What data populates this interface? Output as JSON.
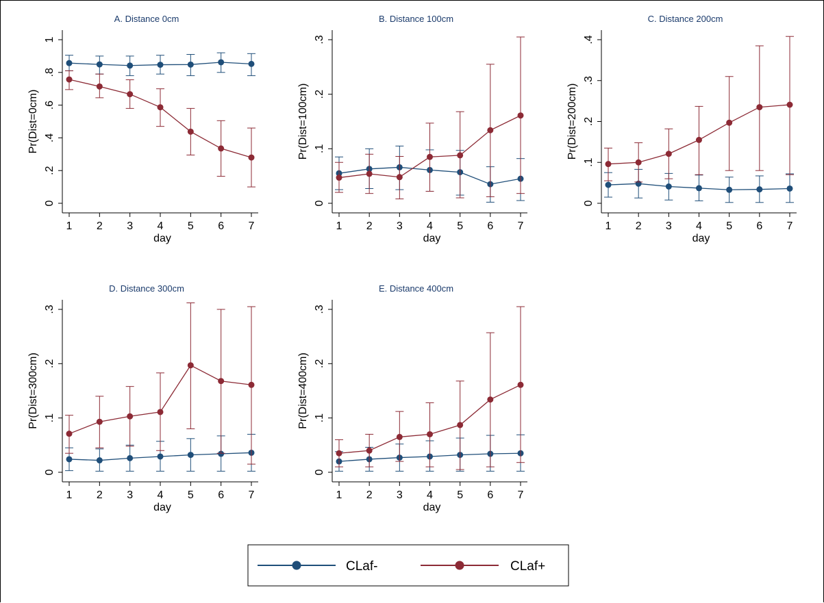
{
  "colors": {
    "claf_minus": "#1f4e79",
    "claf_plus": "#8c2a35",
    "title": "#1a3a6b"
  },
  "legend": {
    "items": [
      "CLaf-",
      "CLaf+"
    ],
    "placement": "bottom-center"
  },
  "chart_data": [
    {
      "type": "line",
      "title": "A. Distance 0cm",
      "xlabel": "day",
      "ylabel": "Pr(Dist=0cm)",
      "ylim": [
        0,
        1
      ],
      "yticks": [
        0,
        0.2,
        0.4,
        0.6,
        0.8,
        1
      ],
      "ytick_labels": [
        "0",
        ".2",
        ".4",
        ".6",
        ".8",
        "1"
      ],
      "x": [
        1,
        2,
        3,
        4,
        5,
        6,
        7
      ],
      "series": [
        {
          "name": "CLaf-",
          "values": [
            0.857,
            0.849,
            0.842,
            0.847,
            0.848,
            0.862,
            0.852
          ],
          "lower": [
            0.81,
            0.79,
            0.78,
            0.79,
            0.78,
            0.8,
            0.78
          ],
          "upper": [
            0.905,
            0.9,
            0.9,
            0.905,
            0.91,
            0.92,
            0.915
          ]
        },
        {
          "name": "CLaf+",
          "values": [
            0.757,
            0.714,
            0.667,
            0.587,
            0.438,
            0.335,
            0.28
          ],
          "lower": [
            0.695,
            0.645,
            0.58,
            0.47,
            0.295,
            0.165,
            0.1
          ],
          "upper": [
            0.81,
            0.79,
            0.755,
            0.7,
            0.58,
            0.505,
            0.46
          ]
        }
      ]
    },
    {
      "type": "line",
      "title": "B. Distance 100cm",
      "xlabel": "day",
      "ylabel": "Pr(Dist=100cm)",
      "ylim": [
        0,
        0.3
      ],
      "yticks": [
        0,
        0.1,
        0.2,
        0.3
      ],
      "ytick_labels": [
        "0",
        ".1",
        ".2",
        ".3"
      ],
      "x": [
        1,
        2,
        3,
        4,
        5,
        6,
        7
      ],
      "series": [
        {
          "name": "CLaf-",
          "values": [
            0.055,
            0.063,
            0.066,
            0.061,
            0.057,
            0.035,
            0.045
          ],
          "lower": [
            0.025,
            0.027,
            0.025,
            0.022,
            0.015,
            0.002,
            0.005
          ],
          "upper": [
            0.085,
            0.1,
            0.105,
            0.098,
            0.097,
            0.067,
            0.082
          ]
        },
        {
          "name": "CLaf+",
          "values": [
            0.047,
            0.054,
            0.048,
            0.085,
            0.088,
            0.134,
            0.161
          ],
          "lower": [
            0.02,
            0.018,
            0.008,
            0.022,
            0.01,
            0.012,
            0.018
          ],
          "upper": [
            0.075,
            0.09,
            0.086,
            0.147,
            0.168,
            0.255,
            0.305
          ]
        }
      ]
    },
    {
      "type": "line",
      "title": "C. Distance 200cm",
      "xlabel": "day",
      "ylabel": "Pr(Dist=200cm)",
      "ylim": [
        0,
        0.4
      ],
      "yticks": [
        0,
        0.1,
        0.2,
        0.3,
        0.4
      ],
      "ytick_labels": [
        "0",
        ".1",
        ".2",
        ".3",
        ".4"
      ],
      "x": [
        1,
        2,
        3,
        4,
        5,
        6,
        7
      ],
      "series": [
        {
          "name": "CLaf-",
          "values": [
            0.045,
            0.048,
            0.041,
            0.037,
            0.033,
            0.034,
            0.036
          ],
          "lower": [
            0.015,
            0.013,
            0.008,
            0.006,
            0.002,
            0.002,
            0.002
          ],
          "upper": [
            0.075,
            0.083,
            0.073,
            0.069,
            0.064,
            0.067,
            0.072
          ]
        },
        {
          "name": "CLaf+",
          "values": [
            0.096,
            0.1,
            0.121,
            0.155,
            0.197,
            0.235,
            0.241
          ],
          "lower": [
            0.055,
            0.052,
            0.06,
            0.07,
            0.08,
            0.08,
            0.07
          ],
          "upper": [
            0.135,
            0.148,
            0.182,
            0.237,
            0.31,
            0.385,
            0.408
          ]
        }
      ]
    },
    {
      "type": "line",
      "title": "D. Distance 300cm",
      "xlabel": "day",
      "ylabel": "Pr(Dist=300cm)",
      "ylim": [
        0,
        0.3
      ],
      "yticks": [
        0,
        0.1,
        0.2,
        0.3
      ],
      "ytick_labels": [
        "0",
        ".1",
        ".2",
        ".3"
      ],
      "x": [
        1,
        2,
        3,
        4,
        5,
        6,
        7
      ],
      "series": [
        {
          "name": "CLaf-",
          "values": [
            0.024,
            0.022,
            0.026,
            0.029,
            0.032,
            0.034,
            0.036
          ],
          "lower": [
            0.003,
            0.002,
            0.002,
            0.002,
            0.002,
            0.002,
            0.002
          ],
          "upper": [
            0.045,
            0.043,
            0.05,
            0.057,
            0.062,
            0.067,
            0.07
          ]
        },
        {
          "name": "CLaf+",
          "values": [
            0.071,
            0.093,
            0.103,
            0.111,
            0.197,
            0.168,
            0.161
          ],
          "lower": [
            0.035,
            0.045,
            0.048,
            0.04,
            0.08,
            0.035,
            0.015
          ],
          "upper": [
            0.105,
            0.14,
            0.158,
            0.183,
            0.312,
            0.3,
            0.305
          ]
        }
      ]
    },
    {
      "type": "line",
      "title": "E. Distance 400cm",
      "xlabel": "day",
      "ylabel": "Pr(Dist=400cm)",
      "ylim": [
        0,
        0.3
      ],
      "yticks": [
        0,
        0.1,
        0.2,
        0.3
      ],
      "ytick_labels": [
        "0",
        ".1",
        ".2",
        ".3"
      ],
      "x": [
        1,
        2,
        3,
        4,
        5,
        6,
        7
      ],
      "series": [
        {
          "name": "CLaf-",
          "values": [
            0.02,
            0.024,
            0.027,
            0.029,
            0.032,
            0.034,
            0.035
          ],
          "lower": [
            0.002,
            0.002,
            0.002,
            0.002,
            0.002,
            0.002,
            0.002
          ],
          "upper": [
            0.038,
            0.046,
            0.052,
            0.058,
            0.063,
            0.068,
            0.069
          ]
        },
        {
          "name": "CLaf+",
          "values": [
            0.035,
            0.04,
            0.065,
            0.07,
            0.087,
            0.134,
            0.161
          ],
          "lower": [
            0.01,
            0.01,
            0.02,
            0.01,
            0.005,
            0.01,
            0.018
          ],
          "upper": [
            0.06,
            0.07,
            0.112,
            0.128,
            0.168,
            0.257,
            0.305
          ]
        }
      ]
    }
  ]
}
